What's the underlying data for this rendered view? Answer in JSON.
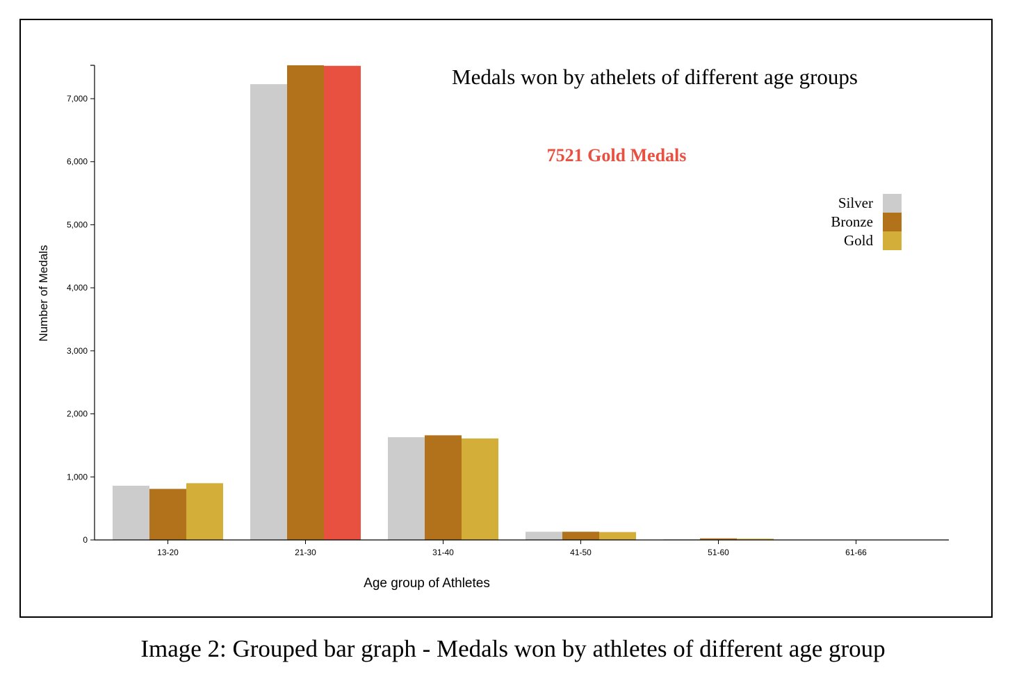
{
  "caption": "Image 2: Grouped bar graph - Medals won by athletes of different age group",
  "chart_data": {
    "type": "bar",
    "title": "Medals won by athelets of different age groups",
    "annotation": "7521 Gold Medals",
    "xlabel": "Age group of Athletes",
    "ylabel": "Number of Medals",
    "categories": [
      "13-20",
      "21-30",
      "31-40",
      "41-50",
      "51-60",
      "61-66"
    ],
    "ylim": [
      0,
      7500
    ],
    "yticks": [
      0,
      1000,
      2000,
      3000,
      4000,
      5000,
      6000,
      7000
    ],
    "ytick_labels": [
      "0",
      "1,000",
      "2,000",
      "3,000",
      "4,000",
      "5,000",
      "6,000",
      "7,000"
    ],
    "grid": false,
    "legend_position": "top-right",
    "series": [
      {
        "name": "Silver",
        "color": "#cccccc",
        "values": [
          860,
          7230,
          1630,
          130,
          10,
          3
        ]
      },
      {
        "name": "Bronze",
        "color": "#b1721b",
        "values": [
          810,
          7530,
          1660,
          130,
          25,
          3
        ]
      },
      {
        "name": "Gold",
        "color": "#d3ae39",
        "values": [
          900,
          7521,
          1610,
          125,
          20,
          3
        ]
      }
    ],
    "highlight": {
      "series": "Gold",
      "category": "21-30",
      "color": "#e85040"
    }
  }
}
